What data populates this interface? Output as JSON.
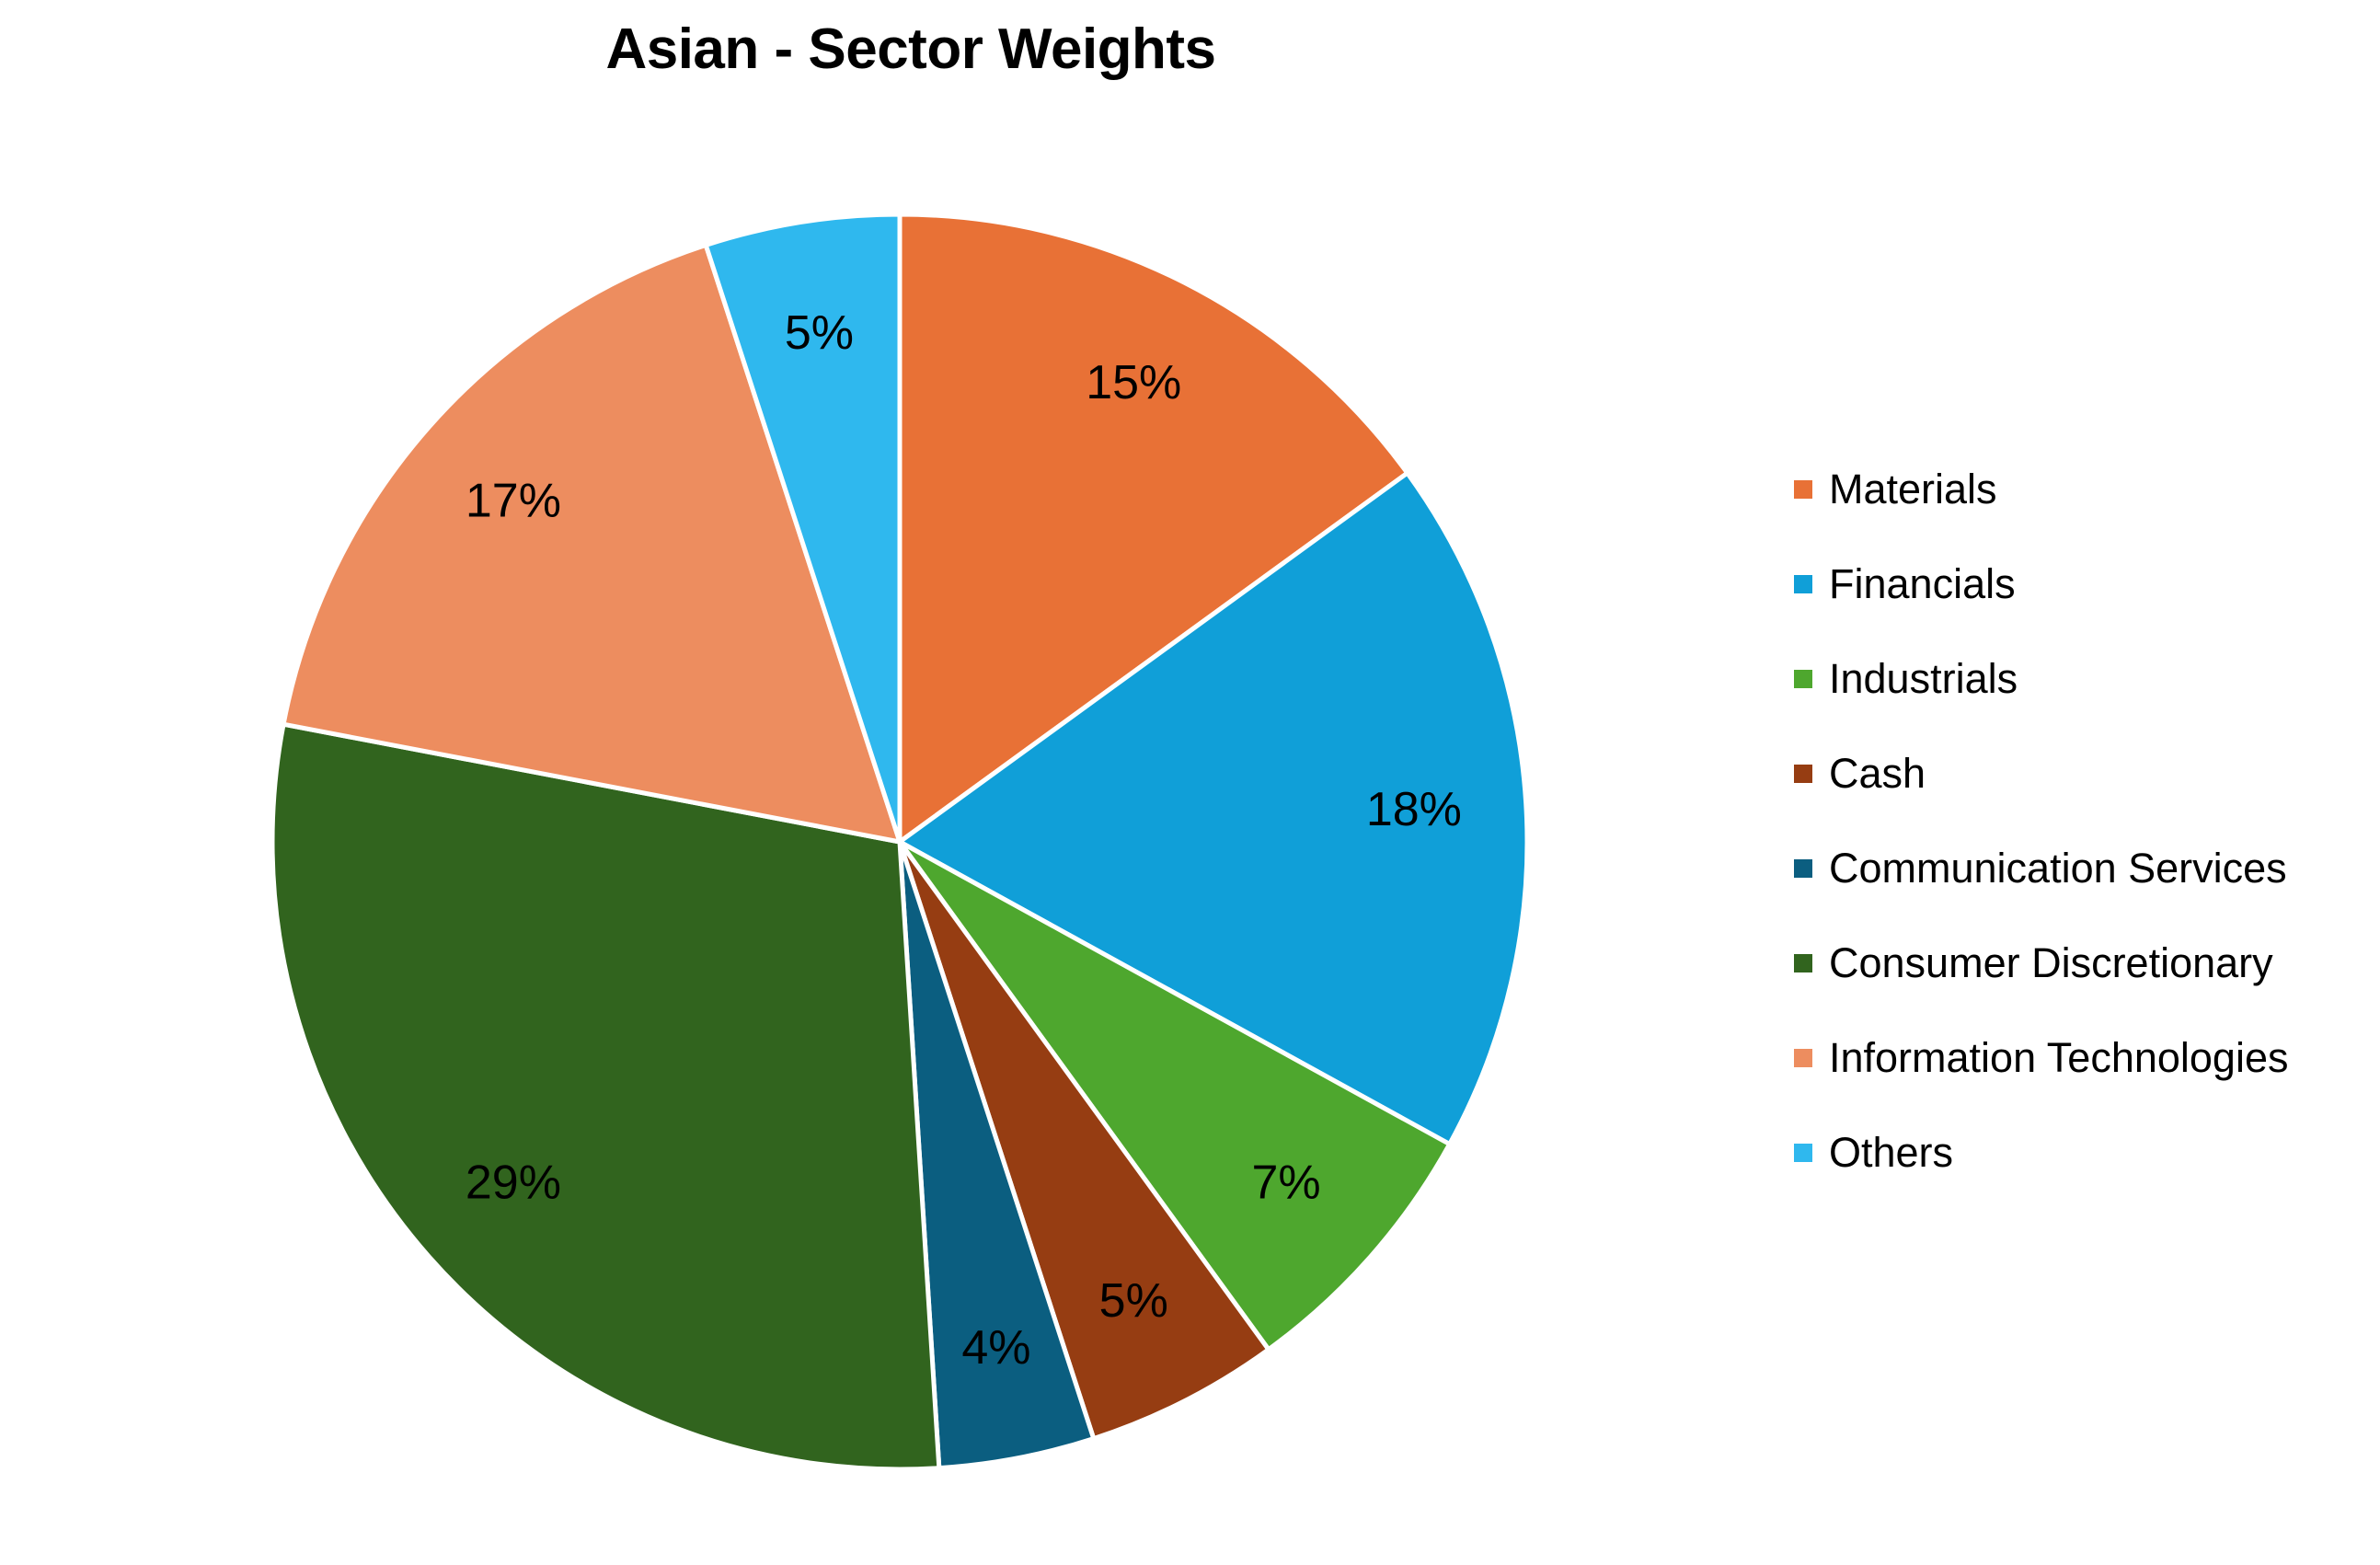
{
  "chart_data": {
    "type": "pie",
    "title": "Asian - Sector Weights",
    "legend_position": "right",
    "slices": [
      {
        "label": "Materials",
        "value": 15,
        "display": "15%",
        "color": "#E87136"
      },
      {
        "label": "Financials",
        "value": 18,
        "display": "18%",
        "color": "#109FD8"
      },
      {
        "label": "Industrials",
        "value": 7,
        "display": "7%",
        "color": "#4EA72E"
      },
      {
        "label": "Cash",
        "value": 5,
        "display": "5%",
        "color": "#963D12"
      },
      {
        "label": "Communication Services",
        "value": 4,
        "display": "4%",
        "color": "#0B5E80"
      },
      {
        "label": "Consumer Discretionary",
        "value": 29,
        "display": "29%",
        "color": "#31641E"
      },
      {
        "label": "Information Technologies",
        "value": 17,
        "display": "17%",
        "color": "#ED8D5F"
      },
      {
        "label": "Others",
        "value": 5,
        "display": "5%",
        "color": "#2FB8EE"
      }
    ]
  }
}
